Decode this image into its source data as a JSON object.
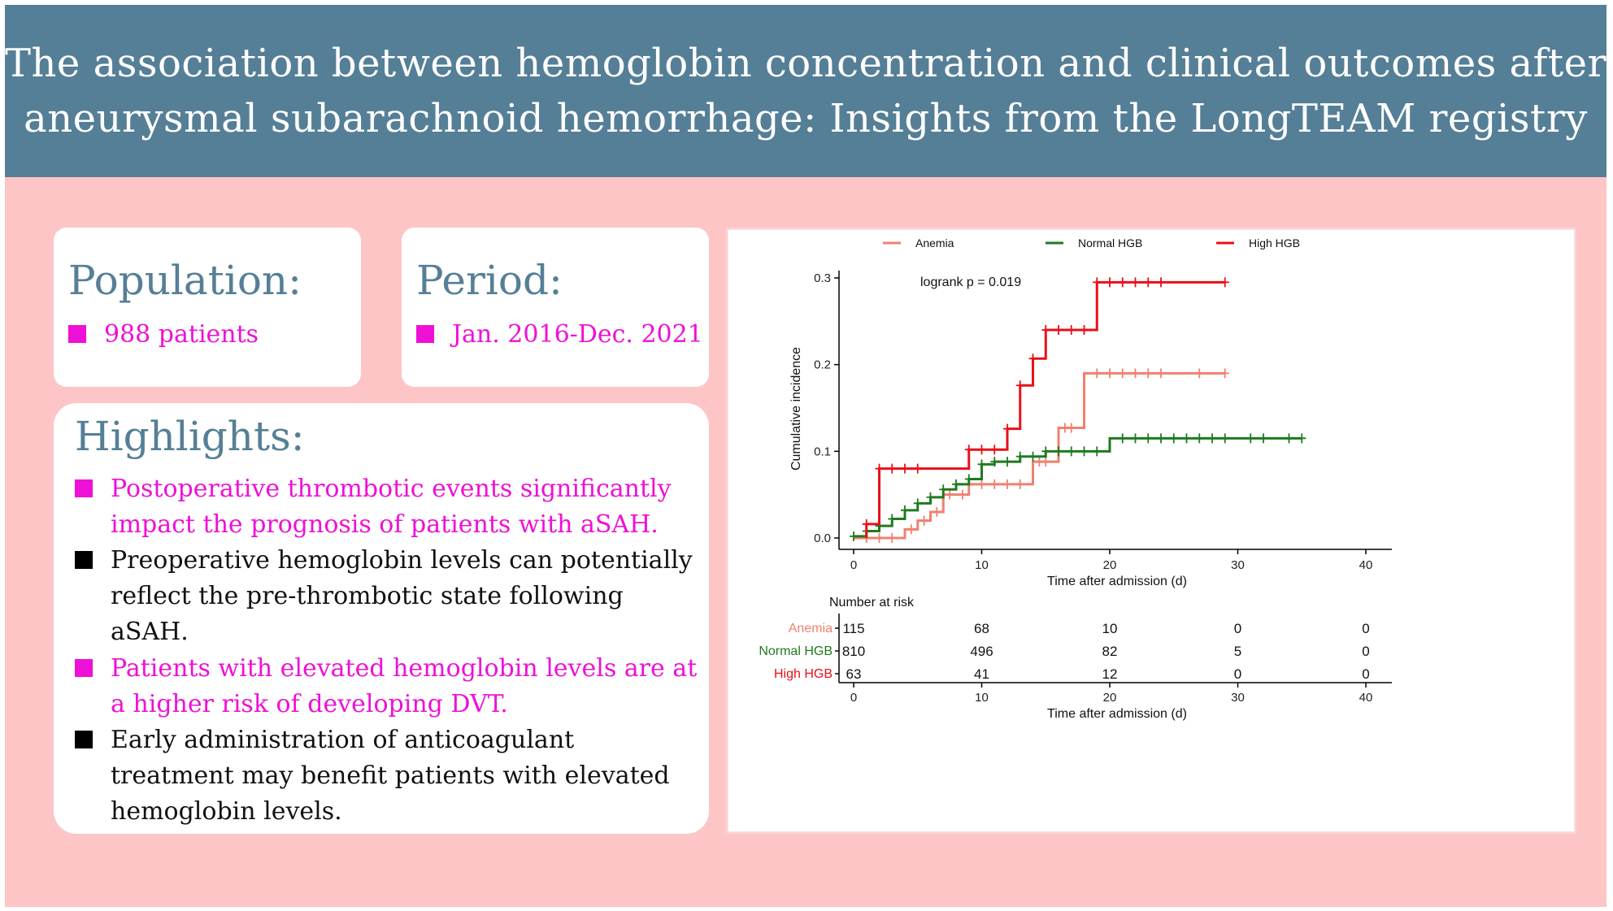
{
  "header": {
    "title_line1": "The association between hemoglobin concentration and clinical outcomes after",
    "title_line2": "aneurysmal subarachnoid hemorrhage: Insights from the LongTEAM registry"
  },
  "population": {
    "heading": "Population:",
    "value": "988 patients"
  },
  "period": {
    "heading": "Period:",
    "value": "Jan. 2016-Dec. 2021"
  },
  "highlights": {
    "heading": "Highlights:",
    "items": [
      {
        "lines": [
          "Postoperative thrombotic events significantly",
          "impact the prognosis of patients with aSAH."
        ],
        "style": "pink"
      },
      {
        "lines": [
          "Preoperative hemoglobin levels can potentially",
          "reflect the pre-thrombotic state following",
          "aSAH."
        ],
        "style": "black"
      },
      {
        "lines": [
          "Patients with elevated hemoglobin levels are at",
          "a higher risk of developing DVT."
        ],
        "style": "pink"
      },
      {
        "lines": [
          "Early administration of anticoagulant",
          "treatment may benefit patients with elevated",
          "hemoglobin levels."
        ],
        "style": "black"
      }
    ]
  },
  "colors": {
    "header_bg": "#557f96",
    "panel_bg": "#fec5c6",
    "accent_pink": "#ee10d6"
  },
  "chart_data": {
    "type": "line",
    "subtype": "kaplan-meier cumulative incidence",
    "xlabel": "Time after admission (d)",
    "ylabel": "Cumulative incidence",
    "xlim": [
      0,
      42
    ],
    "ylim": [
      -0.01,
      0.31
    ],
    "x_ticks": [
      0,
      10,
      20,
      30,
      40
    ],
    "y_ticks": [
      0.0,
      0.1,
      0.2,
      0.3
    ],
    "y_tick_labels": [
      "0.0",
      "0.1",
      "0.2",
      "0.3"
    ],
    "annotation": "logrank p = 0.019",
    "legend_position": "top",
    "series": [
      {
        "name": "Anemia",
        "legend_label": "Anemia",
        "color": "#f08070",
        "steps": [
          [
            0,
            0
          ],
          [
            4,
            0.01
          ],
          [
            5,
            0.02
          ],
          [
            6,
            0.03
          ],
          [
            7,
            0.05
          ],
          [
            9,
            0.062
          ],
          [
            14,
            0.088
          ],
          [
            16,
            0.127
          ],
          [
            18,
            0.19
          ],
          [
            29,
            0.19
          ]
        ],
        "censors": [
          [
            1,
            0
          ],
          [
            2,
            0
          ],
          [
            3,
            0
          ],
          [
            4.5,
            0.01
          ],
          [
            5.5,
            0.02
          ],
          [
            6.5,
            0.03
          ],
          [
            7.5,
            0.05
          ],
          [
            8.5,
            0.05
          ],
          [
            10,
            0.062
          ],
          [
            11,
            0.062
          ],
          [
            12,
            0.062
          ],
          [
            13,
            0.062
          ],
          [
            14.5,
            0.088
          ],
          [
            15,
            0.088
          ],
          [
            16.5,
            0.127
          ],
          [
            17,
            0.127
          ],
          [
            19,
            0.19
          ],
          [
            20,
            0.19
          ],
          [
            21,
            0.19
          ],
          [
            22,
            0.19
          ],
          [
            23,
            0.19
          ],
          [
            24,
            0.19
          ],
          [
            27,
            0.19
          ],
          [
            29,
            0.19
          ]
        ]
      },
      {
        "name": "Normal HGB",
        "legend_label": "Normal   HGB",
        "color": "#1f7a1f",
        "steps": [
          [
            0,
            0.002
          ],
          [
            1,
            0.008
          ],
          [
            2,
            0.014
          ],
          [
            3,
            0.022
          ],
          [
            4,
            0.032
          ],
          [
            5,
            0.04
          ],
          [
            6,
            0.047
          ],
          [
            7,
            0.056
          ],
          [
            8,
            0.062
          ],
          [
            9,
            0.068
          ],
          [
            10,
            0.085
          ],
          [
            11,
            0.088
          ],
          [
            13,
            0.094
          ],
          [
            15,
            0.1
          ],
          [
            20,
            0.115
          ],
          [
            35,
            0.115
          ]
        ],
        "censors": [
          [
            0,
            0.002
          ],
          [
            1,
            0.008
          ],
          [
            2,
            0.014
          ],
          [
            3,
            0.022
          ],
          [
            4,
            0.032
          ],
          [
            5,
            0.04
          ],
          [
            6,
            0.047
          ],
          [
            7,
            0.056
          ],
          [
            8,
            0.062
          ],
          [
            9,
            0.068
          ],
          [
            10,
            0.085
          ],
          [
            11,
            0.088
          ],
          [
            12,
            0.088
          ],
          [
            13,
            0.094
          ],
          [
            14,
            0.094
          ],
          [
            15,
            0.1
          ],
          [
            16,
            0.1
          ],
          [
            17,
            0.1
          ],
          [
            18,
            0.1
          ],
          [
            19,
            0.1
          ],
          [
            21,
            0.115
          ],
          [
            22,
            0.115
          ],
          [
            23,
            0.115
          ],
          [
            24,
            0.115
          ],
          [
            25,
            0.115
          ],
          [
            26,
            0.115
          ],
          [
            27,
            0.115
          ],
          [
            28,
            0.115
          ],
          [
            29,
            0.115
          ],
          [
            31,
            0.115
          ],
          [
            32,
            0.115
          ],
          [
            34,
            0.115
          ],
          [
            35,
            0.115
          ]
        ]
      },
      {
        "name": "High HGB",
        "legend_label": "High HGB",
        "color": "#e8101a",
        "steps": [
          [
            1,
            0
          ],
          [
            1,
            0.016
          ],
          [
            2,
            0.08
          ],
          [
            9,
            0.102
          ],
          [
            12,
            0.126
          ],
          [
            13,
            0.176
          ],
          [
            14,
            0.207
          ],
          [
            15,
            0.24
          ],
          [
            19,
            0.295
          ],
          [
            29,
            0.295
          ]
        ],
        "censors": [
          [
            1,
            0.016
          ],
          [
            2,
            0.08
          ],
          [
            3,
            0.08
          ],
          [
            4,
            0.08
          ],
          [
            5,
            0.08
          ],
          [
            9,
            0.102
          ],
          [
            10,
            0.102
          ],
          [
            11,
            0.102
          ],
          [
            12,
            0.126
          ],
          [
            13,
            0.176
          ],
          [
            14,
            0.207
          ],
          [
            15,
            0.24
          ],
          [
            16,
            0.24
          ],
          [
            17,
            0.24
          ],
          [
            18,
            0.24
          ],
          [
            19,
            0.295
          ],
          [
            20,
            0.295
          ],
          [
            21,
            0.295
          ],
          [
            22,
            0.295
          ],
          [
            23,
            0.295
          ],
          [
            24,
            0.295
          ],
          [
            29,
            0.295
          ]
        ]
      }
    ],
    "risk_table": {
      "title": "Number at risk",
      "xlabel": "Time after admission (d)",
      "times": [
        0,
        10,
        20,
        30,
        40
      ],
      "time_labels": [
        "0",
        "10",
        "20",
        "30",
        "40"
      ],
      "rows": [
        {
          "label": "Anemia",
          "color": "#f08070",
          "values": [
            "115",
            "68",
            "10",
            "0",
            "0"
          ]
        },
        {
          "label": "Normal HGB",
          "color": "#1f7a1f",
          "values": [
            "810",
            "496",
            "82",
            "5",
            "0"
          ]
        },
        {
          "label": "High HGB",
          "color": "#e8101a",
          "values": [
            "63",
            "41",
            "12",
            "0",
            "0"
          ]
        }
      ]
    }
  }
}
